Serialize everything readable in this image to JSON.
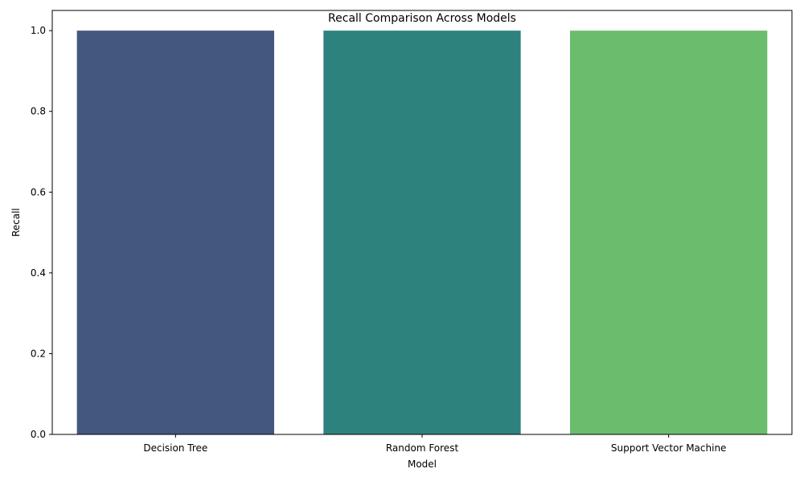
{
  "chart_data": {
    "type": "bar",
    "title": "Recall Comparison Across Models",
    "xlabel": "Model",
    "ylabel": "Recall",
    "categories": [
      "Decision Tree",
      "Random Forest",
      "Support Vector Machine"
    ],
    "values": [
      1.0,
      1.0,
      1.0
    ],
    "bar_colors": [
      "#43577f",
      "#2e827d",
      "#6bbc6d"
    ],
    "ylim": [
      0,
      1.05
    ],
    "yticks": [
      "0.0",
      "0.2",
      "0.4",
      "0.6",
      "0.8",
      "1.0"
    ],
    "grid": false,
    "legend": "none"
  }
}
